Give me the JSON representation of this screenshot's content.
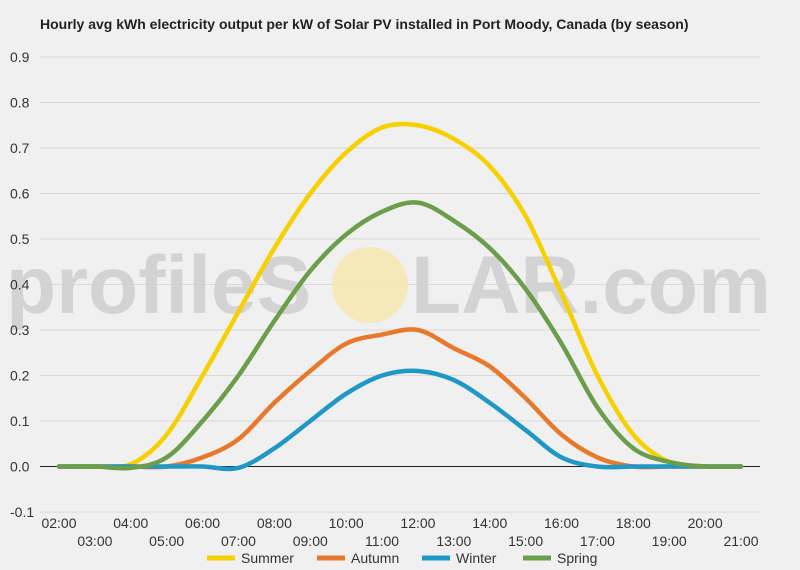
{
  "chart_data": {
    "type": "line",
    "title": "Hourly avg kWh electricity output per kW of Solar PV installed in Port Moody, Canada (by season)",
    "xlabel": "",
    "ylabel": "",
    "x": [
      "02:00",
      "03:00",
      "04:00",
      "05:00",
      "06:00",
      "07:00",
      "08:00",
      "09:00",
      "10:00",
      "11:00",
      "12:00",
      "13:00",
      "14:00",
      "15:00",
      "16:00",
      "17:00",
      "18:00",
      "19:00",
      "20:00",
      "21:00"
    ],
    "yticks": [
      "-0.1",
      "0.0",
      "0.1",
      "0.2",
      "0.3",
      "0.4",
      "0.5",
      "0.6",
      "0.7",
      "0.8",
      "0.9"
    ],
    "ylim": [
      -0.1,
      0.9
    ],
    "grid": true,
    "legend_position": "bottom",
    "series": [
      {
        "name": "Summer",
        "color": "#f7d002",
        "values": [
          0.0,
          0.0,
          0.005,
          0.07,
          0.2,
          0.34,
          0.48,
          0.6,
          0.69,
          0.745,
          0.75,
          0.72,
          0.66,
          0.55,
          0.38,
          0.2,
          0.07,
          0.01,
          0.0,
          0.0
        ]
      },
      {
        "name": "Autumn",
        "color": "#e8792b",
        "values": [
          0.0,
          0.0,
          0.0,
          0.0,
          0.02,
          0.06,
          0.14,
          0.21,
          0.27,
          0.29,
          0.3,
          0.26,
          0.22,
          0.15,
          0.07,
          0.02,
          0.0,
          0.0,
          0.0,
          0.0
        ]
      },
      {
        "name": "Winter",
        "color": "#1f97c7",
        "values": [
          0.0,
          0.0,
          0.0,
          0.0,
          0.0,
          -0.003,
          0.04,
          0.1,
          0.16,
          0.2,
          0.21,
          0.19,
          0.14,
          0.08,
          0.02,
          0.0,
          0.0,
          0.0,
          0.0,
          0.0
        ]
      },
      {
        "name": "Spring",
        "color": "#6b9e4b",
        "values": [
          0.0,
          0.0,
          -0.003,
          0.02,
          0.1,
          0.2,
          0.32,
          0.43,
          0.51,
          0.56,
          0.58,
          0.54,
          0.48,
          0.39,
          0.27,
          0.13,
          0.04,
          0.01,
          0.0,
          0.0
        ]
      }
    ]
  },
  "watermark": {
    "left": "profileS",
    "right": "LAR.com"
  }
}
